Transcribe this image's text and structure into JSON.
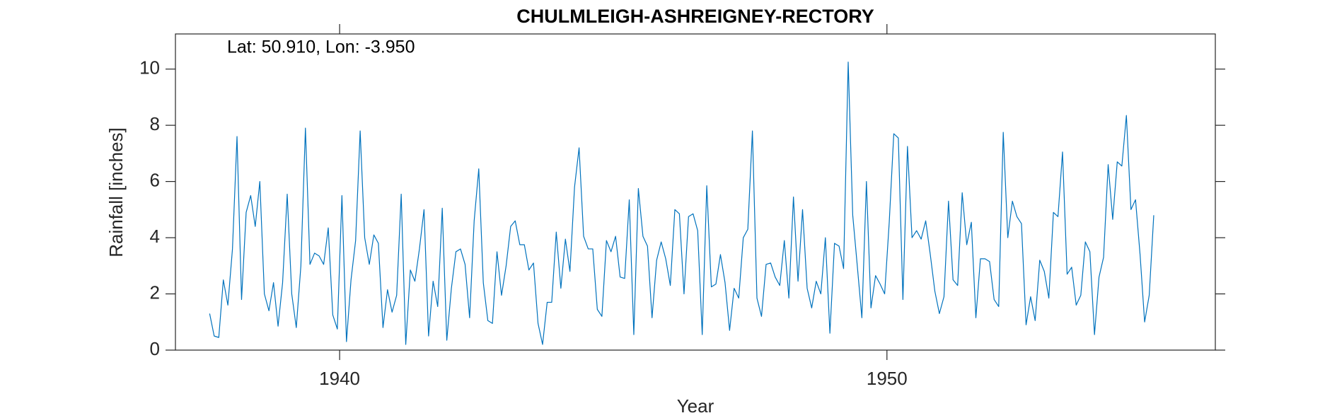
{
  "chart_data": {
    "type": "line",
    "title": "CHULMLEIGH-ASHREIGNEY-RECTORY",
    "annotation": "Lat: 50.910, Lon: -3.950",
    "xlabel": "Year",
    "ylabel": "Rainfall [inches]",
    "xlim": [
      1937,
      1956
    ],
    "xticks": [
      1940,
      1950
    ],
    "ylim": [
      0,
      11.25
    ],
    "yticks": [
      0,
      2,
      4,
      6,
      8,
      10
    ],
    "grid": false,
    "x": [
      1937.625,
      1937.708,
      1937.792,
      1937.875,
      1937.958,
      1938.042,
      1938.125,
      1938.208,
      1938.292,
      1938.375,
      1938.458,
      1938.542,
      1938.625,
      1938.708,
      1938.792,
      1938.875,
      1938.958,
      1939.042,
      1939.125,
      1939.208,
      1939.292,
      1939.375,
      1939.458,
      1939.542,
      1939.625,
      1939.708,
      1939.792,
      1939.875,
      1939.958,
      1940.042,
      1940.125,
      1940.208,
      1940.292,
      1940.375,
      1940.458,
      1940.542,
      1940.625,
      1940.708,
      1940.792,
      1940.875,
      1940.958,
      1941.042,
      1941.125,
      1941.208,
      1941.292,
      1941.375,
      1941.458,
      1941.542,
      1941.625,
      1941.708,
      1941.792,
      1941.875,
      1941.958,
      1942.042,
      1942.125,
      1942.208,
      1942.292,
      1942.375,
      1942.458,
      1942.542,
      1942.625,
      1942.708,
      1942.792,
      1942.875,
      1942.958,
      1943.042,
      1943.125,
      1943.208,
      1943.292,
      1943.375,
      1943.458,
      1943.542,
      1943.625,
      1943.708,
      1943.792,
      1943.875,
      1943.958,
      1944.042,
      1944.125,
      1944.208,
      1944.292,
      1944.375,
      1944.458,
      1944.542,
      1944.625,
      1944.708,
      1944.792,
      1944.875,
      1944.958,
      1945.042,
      1945.125,
      1945.208,
      1945.292,
      1945.375,
      1945.458,
      1945.542,
      1945.625,
      1945.708,
      1945.792,
      1945.875,
      1945.958,
      1946.042,
      1946.125,
      1946.208,
      1946.292,
      1946.375,
      1946.458,
      1946.542,
      1946.625,
      1946.708,
      1946.792,
      1946.875,
      1946.958,
      1947.042,
      1947.125,
      1947.208,
      1947.292,
      1947.375,
      1947.458,
      1947.542,
      1947.625,
      1947.708,
      1947.792,
      1947.875,
      1947.958,
      1948.042,
      1948.125,
      1948.208,
      1948.292,
      1948.375,
      1948.458,
      1948.542,
      1948.625,
      1948.708,
      1948.792,
      1948.875,
      1948.958,
      1949.042,
      1949.125,
      1949.208,
      1949.292,
      1949.375,
      1949.458,
      1949.542,
      1949.625,
      1949.708,
      1949.792,
      1949.875,
      1949.958,
      1950.042,
      1950.125,
      1950.208,
      1950.292,
      1950.375,
      1950.458,
      1950.542,
      1950.625,
      1950.708,
      1950.792,
      1950.875,
      1950.958,
      1951.042,
      1951.125,
      1951.208,
      1951.292,
      1951.375,
      1951.458,
      1951.542,
      1951.625,
      1951.708,
      1951.792,
      1951.875,
      1951.958,
      1952.042,
      1952.125,
      1952.208,
      1952.292,
      1952.375,
      1952.458,
      1952.542,
      1952.625,
      1952.708,
      1952.792,
      1952.875,
      1952.958,
      1953.042,
      1953.125,
      1953.208,
      1953.292,
      1953.375,
      1953.458,
      1953.542,
      1953.625,
      1953.708,
      1953.792,
      1953.875,
      1953.958,
      1954.042,
      1954.125,
      1954.208,
      1954.292,
      1954.375,
      1954.458,
      1954.542,
      1954.625,
      1954.708,
      1954.792,
      1954.875
    ],
    "series": [
      {
        "color": "#0072bd",
        "values": [
          1.3,
          0.5,
          0.45,
          2.5,
          1.6,
          3.6,
          7.6,
          1.8,
          4.9,
          5.5,
          4.4,
          6.0,
          2.0,
          1.4,
          2.4,
          0.85,
          2.4,
          5.55,
          2.0,
          0.8,
          3.0,
          7.9,
          3.05,
          3.45,
          3.35,
          3.05,
          4.35,
          1.25,
          0.75,
          5.5,
          0.3,
          2.5,
          3.9,
          7.8,
          4.0,
          3.05,
          4.1,
          3.8,
          0.8,
          2.15,
          1.35,
          1.95,
          5.55,
          0.2,
          2.85,
          2.45,
          3.6,
          5.0,
          0.5,
          2.45,
          1.55,
          5.05,
          0.35,
          2.2,
          3.5,
          3.6,
          3.05,
          1.15,
          4.6,
          6.45,
          2.4,
          1.05,
          0.95,
          3.5,
          1.95,
          3.0,
          4.4,
          4.6,
          3.75,
          3.75,
          2.85,
          3.1,
          0.95,
          0.2,
          1.7,
          1.7,
          4.2,
          2.2,
          3.95,
          2.8,
          5.8,
          7.2,
          4.05,
          3.6,
          3.6,
          1.45,
          1.2,
          3.9,
          3.5,
          4.05,
          2.6,
          2.55,
          5.35,
          0.55,
          5.75,
          4.05,
          3.7,
          1.15,
          3.2,
          3.85,
          3.25,
          2.3,
          5.0,
          4.85,
          2.0,
          4.75,
          4.85,
          4.25,
          0.55,
          5.85,
          2.25,
          2.35,
          3.4,
          2.4,
          0.7,
          2.2,
          1.85,
          4.0,
          4.3,
          7.8,
          1.85,
          1.2,
          3.05,
          3.1,
          2.6,
          2.3,
          3.9,
          1.85,
          5.45,
          2.45,
          5.0,
          2.2,
          1.5,
          2.45,
          2.0,
          4.0,
          0.6,
          3.8,
          3.7,
          2.9,
          10.25,
          4.8,
          3.0,
          1.15,
          6.0,
          1.5,
          2.65,
          2.35,
          2.0,
          4.55,
          7.7,
          7.55,
          1.8,
          7.25,
          4.0,
          4.25,
          3.95,
          4.6,
          3.4,
          2.1,
          1.3,
          1.9,
          5.3,
          2.5,
          2.3,
          5.6,
          3.75,
          4.55,
          1.15,
          3.25,
          3.25,
          3.15,
          1.8,
          1.55,
          7.75,
          4.0,
          5.3,
          4.75,
          4.5,
          0.9,
          1.9,
          1.05,
          3.2,
          2.8,
          1.85,
          4.9,
          4.75,
          7.05,
          2.7,
          2.95,
          1.6,
          1.95,
          3.85,
          3.5,
          0.55,
          2.6,
          3.3,
          6.6,
          4.65,
          6.7,
          6.55,
          8.35,
          5.0,
          5.35,
          3.4,
          1.0,
          1.95,
          4.8
        ]
      }
    ]
  }
}
